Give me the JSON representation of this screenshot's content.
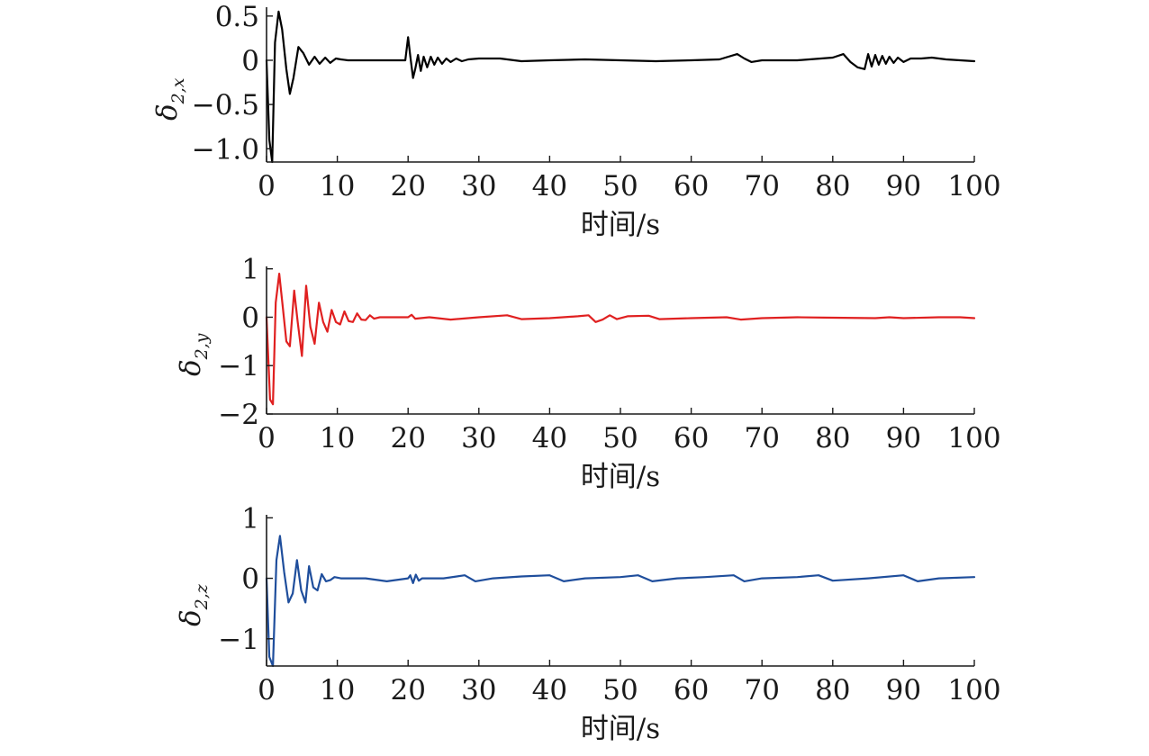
{
  "chart_data": [
    {
      "type": "line",
      "xlabel": "时间/s",
      "ylabel": "δ",
      "ylabel_sub": "2,x",
      "xlim": [
        0,
        100
      ],
      "ylim": [
        -1.15,
        0.6
      ],
      "xticks": [
        0,
        10,
        20,
        30,
        40,
        50,
        60,
        70,
        80,
        90,
        100
      ],
      "xtick_labels": [
        "0",
        "10",
        "20",
        "30",
        "40",
        "50",
        "60",
        "70",
        "80",
        "90",
        "100"
      ],
      "yticks": [
        0.5,
        0,
        -0.5,
        -1.0
      ],
      "ytick_labels": [
        "0.5",
        "0",
        "−0.5",
        "−1.0"
      ],
      "grid": false,
      "series": [
        {
          "color": "#000000",
          "x": [
            0,
            0.4,
            0.8,
            1.2,
            1.7,
            2.2,
            2.8,
            3.3,
            3.8,
            4.5,
            5.2,
            6.0,
            6.8,
            7.5,
            8.3,
            9.0,
            9.8,
            10.5,
            11.5,
            13,
            15,
            18,
            19.6,
            20.0,
            20.3,
            20.7,
            21.0,
            21.4,
            21.8,
            22.2,
            22.7,
            23.2,
            23.7,
            24.2,
            24.8,
            25.4,
            26.0,
            26.8,
            27.6,
            28.5,
            30,
            33,
            36,
            40,
            45,
            50,
            55,
            60,
            64,
            66.5,
            67.5,
            68.5,
            70,
            75,
            80,
            81.5,
            82.5,
            83.5,
            84.5,
            85.0,
            85.5,
            86.0,
            86.5,
            87.0,
            87.5,
            88.0,
            88.6,
            89.2,
            90.0,
            91.0,
            92.5,
            94,
            96,
            98,
            100
          ],
          "y": [
            0,
            -0.9,
            -1.15,
            0.2,
            0.55,
            0.35,
            -0.1,
            -0.38,
            -0.2,
            0.15,
            0.08,
            -0.05,
            0.04,
            -0.04,
            0.03,
            -0.03,
            0.02,
            0.01,
            0.0,
            0.0,
            0.0,
            0.0,
            0.0,
            0.26,
            0.05,
            -0.2,
            -0.1,
            0.06,
            -0.12,
            0.04,
            -0.08,
            0.04,
            -0.05,
            0.03,
            -0.04,
            0.02,
            -0.02,
            0.02,
            -0.01,
            0.01,
            0.02,
            0.02,
            -0.01,
            0.0,
            0.01,
            0.0,
            -0.01,
            0.0,
            0.01,
            0.07,
            0.02,
            -0.02,
            0.0,
            0.0,
            0.03,
            0.07,
            -0.02,
            -0.08,
            -0.1,
            0.07,
            -0.07,
            0.06,
            -0.05,
            0.05,
            -0.04,
            0.04,
            -0.03,
            0.03,
            -0.02,
            0.02,
            0.02,
            0.03,
            0.01,
            0.0,
            -0.01
          ]
        }
      ]
    },
    {
      "type": "line",
      "xlabel": "时间/s",
      "ylabel": "δ",
      "ylabel_sub": "2,y",
      "xlim": [
        0,
        100
      ],
      "ylim": [
        -2,
        1.05
      ],
      "xticks": [
        0,
        10,
        20,
        30,
        40,
        50,
        60,
        70,
        80,
        90,
        100
      ],
      "xtick_labels": [
        "0",
        "10",
        "20",
        "30",
        "40",
        "50",
        "60",
        "70",
        "80",
        "90",
        "100"
      ],
      "yticks": [
        1,
        0,
        -1,
        -2
      ],
      "ytick_labels": [
        "1",
        "0",
        "−1",
        "−2"
      ],
      "grid": false,
      "series": [
        {
          "color": "#e02020",
          "x": [
            0,
            0.5,
            0.9,
            1.3,
            1.8,
            2.3,
            2.8,
            3.3,
            3.9,
            4.4,
            5.0,
            5.6,
            6.2,
            6.8,
            7.4,
            8.0,
            8.6,
            9.2,
            9.8,
            10.4,
            11.0,
            11.6,
            12.2,
            12.8,
            13.4,
            14.0,
            14.6,
            15.2,
            16,
            18,
            20,
            20.5,
            21,
            23,
            26,
            30,
            34,
            36,
            40,
            44,
            45.5,
            46.5,
            47.5,
            48.5,
            49.5,
            51,
            54,
            55.5,
            60,
            65,
            67,
            70,
            75,
            80,
            86,
            88,
            90,
            95,
            98,
            100
          ],
          "y": [
            0,
            -1.7,
            -1.8,
            0.3,
            0.9,
            0.2,
            -0.5,
            -0.6,
            0.55,
            -0.1,
            -0.8,
            0.65,
            -0.2,
            -0.55,
            0.3,
            -0.1,
            -0.3,
            0.15,
            -0.1,
            -0.15,
            0.12,
            -0.08,
            -0.1,
            0.08,
            -0.05,
            -0.06,
            0.04,
            -0.03,
            0.0,
            0.0,
            0.0,
            0.05,
            -0.03,
            0.0,
            -0.05,
            0.0,
            0.04,
            -0.04,
            -0.02,
            0.02,
            0.04,
            -0.1,
            -0.05,
            0.04,
            -0.04,
            0.02,
            0.03,
            -0.04,
            -0.02,
            0.0,
            -0.05,
            -0.02,
            0.0,
            -0.01,
            -0.02,
            0.0,
            -0.02,
            0.0,
            0.0,
            -0.02
          ]
        }
      ]
    },
    {
      "type": "line",
      "xlabel": "时间/s",
      "ylabel": "δ",
      "ylabel_sub": "2,z",
      "xlim": [
        0,
        100
      ],
      "ylim": [
        -1.45,
        1.05
      ],
      "xticks": [
        0,
        10,
        20,
        30,
        40,
        50,
        60,
        70,
        80,
        90,
        100
      ],
      "xtick_labels": [
        "0",
        "10",
        "20",
        "30",
        "40",
        "50",
        "60",
        "70",
        "80",
        "90",
        "100"
      ],
      "yticks": [
        1,
        0,
        -1
      ],
      "ytick_labels": [
        "1",
        "0",
        "−1"
      ],
      "grid": false,
      "series": [
        {
          "color": "#1f4e9c",
          "x": [
            0,
            0.4,
            0.9,
            1.4,
            1.9,
            2.5,
            3.1,
            3.7,
            4.3,
            4.9,
            5.5,
            6.0,
            6.6,
            7.2,
            7.8,
            8.4,
            9.0,
            9.6,
            10.5,
            12,
            14,
            17,
            20,
            20.3,
            20.7,
            21.1,
            21.5,
            22,
            25,
            28,
            29.5,
            32,
            36,
            40,
            42,
            45,
            50,
            52.5,
            54.5,
            58,
            62,
            66,
            67.5,
            70,
            75,
            78,
            80,
            85,
            90,
            92,
            95,
            100
          ],
          "y": [
            0,
            -1.3,
            -1.45,
            0.3,
            0.7,
            0.1,
            -0.4,
            -0.25,
            0.3,
            -0.2,
            -0.4,
            0.2,
            -0.15,
            -0.2,
            0.07,
            -0.05,
            -0.03,
            0.02,
            0.0,
            0.0,
            0.0,
            -0.05,
            0.0,
            0.05,
            -0.08,
            0.06,
            -0.04,
            0.0,
            0.0,
            0.05,
            -0.05,
            0.0,
            0.03,
            0.05,
            -0.05,
            0.0,
            0.02,
            0.05,
            -0.05,
            0.0,
            0.02,
            0.05,
            -0.05,
            0.0,
            0.02,
            0.05,
            -0.04,
            0.0,
            0.05,
            -0.05,
            0.0,
            0.02
          ]
        }
      ]
    }
  ]
}
